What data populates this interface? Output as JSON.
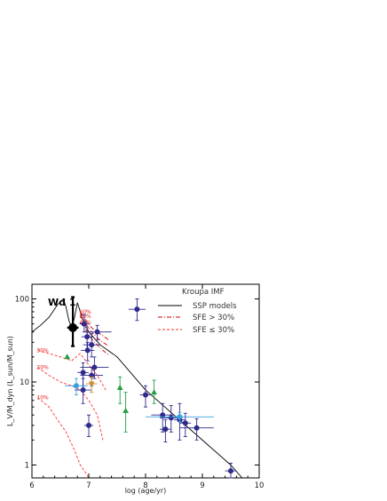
{
  "chart_data": {
    "type": "scatter",
    "xlabel": "log (age/yr)",
    "ylabel": "L_V/M_dyn (L_sun/M_sun)",
    "xlim": [
      6,
      10
    ],
    "ylim": [
      0.7,
      150
    ],
    "yscale": "log",
    "x_ticks": [
      "6",
      "7",
      "8",
      "9",
      "10"
    ],
    "y_ticks": [
      "1",
      "10",
      "100"
    ],
    "annotation": "Wd 1",
    "legend": {
      "title": "Kroupa IMF",
      "entries": [
        "SSP models",
        "SFE > 30%",
        "SFE ≤ 30%"
      ],
      "placement": "top-right"
    },
    "sfe_labels": [
      "60%",
      "50%",
      "40%",
      "30%",
      "20%",
      "10%"
    ],
    "colors": {
      "ssp": "#000000",
      "sfe_high": "#d00000",
      "sfe_low": "#ff3030",
      "cluster": "#2e2a8c",
      "cluster_light": "#3aa0e0",
      "triangle": "#22a040",
      "orange": "#d08a30",
      "wd1": "#000000"
    },
    "ssp_model": {
      "x": [
        6.0,
        6.15,
        6.3,
        6.45,
        6.55,
        6.6,
        6.65,
        6.7,
        6.75,
        6.8,
        6.9,
        7.0,
        7.2,
        7.5,
        8.0,
        8.5,
        9.0,
        9.5,
        9.7
      ],
      "y": [
        40,
        48,
        60,
        85,
        100,
        80,
        55,
        45,
        60,
        90,
        55,
        40,
        28,
        20,
        8,
        4,
        2,
        1,
        0.7
      ]
    },
    "sfe_curves": [
      {
        "label": "60%",
        "x": [
          6.85,
          6.95,
          7.05,
          7.15,
          7.25,
          7.35
        ],
        "y": [
          70,
          55,
          45,
          40,
          36,
          32
        ]
      },
      {
        "label": "50%",
        "x": [
          6.85,
          6.95,
          7.05,
          7.15,
          7.25,
          7.35
        ],
        "y": [
          62,
          50,
          40,
          34,
          30,
          27
        ]
      },
      {
        "label": "40%",
        "x": [
          6.85,
          6.95,
          7.05,
          7.15,
          7.25,
          7.35
        ],
        "y": [
          52,
          42,
          33,
          28,
          24,
          21
        ]
      },
      {
        "label": "30%",
        "x": [
          6.1,
          6.3,
          6.5,
          6.7,
          6.85,
          7.0,
          7.15,
          7.3
        ],
        "y": [
          24,
          22,
          20,
          18,
          22,
          16,
          12,
          8
        ]
      },
      {
        "label": "20%",
        "x": [
          6.1,
          6.3,
          6.5,
          6.7,
          6.85,
          7.0,
          7.15,
          7.25
        ],
        "y": [
          15,
          12,
          10,
          9,
          8,
          6,
          4,
          2
        ]
      },
      {
        "label": "10%",
        "x": [
          6.1,
          6.3,
          6.45,
          6.6,
          6.75,
          6.85,
          6.95,
          7.0
        ],
        "y": [
          6.5,
          5,
          3.5,
          2.5,
          1.5,
          1.0,
          0.8,
          0.7
        ]
      }
    ],
    "clusters": [
      {
        "x": 6.72,
        "y": 45,
        "xerr": 0.1,
        "yerr_lo": 18,
        "yerr_hi": 60,
        "kind": "wd1"
      },
      {
        "x": 6.92,
        "y": 50,
        "xerr": 0.08,
        "yerr_lo": 10,
        "yerr_hi": 15,
        "kind": "cluster"
      },
      {
        "x": 6.97,
        "y": 35,
        "xerr": 0.1,
        "yerr_lo": 10,
        "yerr_hi": 10,
        "kind": "cluster"
      },
      {
        "x": 7.15,
        "y": 40,
        "xerr": 0.25,
        "yerr_lo": 8,
        "yerr_hi": 8,
        "kind": "cluster"
      },
      {
        "x": 7.05,
        "y": 28,
        "xerr": 0.15,
        "yerr_lo": 8,
        "yerr_hi": 10,
        "kind": "cluster"
      },
      {
        "x": 6.98,
        "y": 24,
        "xerr": 0.12,
        "yerr_lo": 6,
        "yerr_hi": 6,
        "kind": "cluster"
      },
      {
        "x": 7.85,
        "y": 75,
        "xerr": 0.15,
        "yerr_lo": 20,
        "yerr_hi": 25,
        "kind": "cluster"
      },
      {
        "x": 7.1,
        "y": 15,
        "xerr": 0.25,
        "yerr_lo": 4,
        "yerr_hi": 5,
        "kind": "cluster"
      },
      {
        "x": 6.9,
        "y": 13,
        "xerr": 0.1,
        "yerr_lo": 4,
        "yerr_hi": 4,
        "kind": "cluster"
      },
      {
        "x": 7.05,
        "y": 12,
        "xerr": 0.2,
        "yerr_lo": 3,
        "yerr_hi": 3,
        "kind": "cluster"
      },
      {
        "x": 6.9,
        "y": 8,
        "xerr": 0.15,
        "yerr_lo": 2.5,
        "yerr_hi": 3,
        "kind": "cluster"
      },
      {
        "x": 7.0,
        "y": 3,
        "xerr": 0.08,
        "yerr_lo": 0.8,
        "yerr_hi": 1,
        "kind": "cluster"
      },
      {
        "x": 6.78,
        "y": 9,
        "xerr": 0.2,
        "yerr_lo": 2,
        "yerr_hi": 2,
        "kind": "cluster_light"
      },
      {
        "x": 7.05,
        "y": 9.5,
        "xerr": 0.1,
        "yerr_lo": 2,
        "yerr_hi": 2,
        "kind": "orange"
      },
      {
        "x": 8.0,
        "y": 7,
        "xerr": 0.1,
        "yerr_lo": 2,
        "yerr_hi": 2,
        "kind": "cluster"
      },
      {
        "x": 8.3,
        "y": 4,
        "xerr": 0.2,
        "yerr_lo": 1.5,
        "yerr_hi": 1.5,
        "kind": "cluster"
      },
      {
        "x": 8.35,
        "y": 2.7,
        "xerr": 0.1,
        "yerr_lo": 0.8,
        "yerr_hi": 0.8,
        "kind": "cluster"
      },
      {
        "x": 8.45,
        "y": 3.7,
        "xerr": 0.2,
        "yerr_lo": 1.2,
        "yerr_hi": 1.5,
        "kind": "cluster"
      },
      {
        "x": 8.6,
        "y": 3.5,
        "xerr": 0.1,
        "yerr_lo": 1.5,
        "yerr_hi": 2,
        "kind": "cluster"
      },
      {
        "x": 8.6,
        "y": 3.8,
        "xerr": 0.6,
        "yerr_lo": 0.5,
        "yerr_hi": 0.5,
        "kind": "cluster_light"
      },
      {
        "x": 8.7,
        "y": 3.2,
        "xerr": 0.1,
        "yerr_lo": 1,
        "yerr_hi": 1,
        "kind": "cluster"
      },
      {
        "x": 8.9,
        "y": 2.8,
        "xerr": 0.3,
        "yerr_lo": 0.8,
        "yerr_hi": 0.8,
        "kind": "cluster"
      },
      {
        "x": 9.5,
        "y": 0.85,
        "xerr": 0.1,
        "yerr_lo": 0.2,
        "yerr_hi": 0.2,
        "kind": "cluster"
      },
      {
        "x": 6.62,
        "y": 20,
        "xerr": 0.0,
        "yerr_lo": 0,
        "yerr_hi": 0,
        "kind": "triangle"
      },
      {
        "x": 7.55,
        "y": 8.5,
        "xerr": 0.0,
        "yerr_lo": 3,
        "yerr_hi": 3,
        "kind": "triangle"
      },
      {
        "x": 7.65,
        "y": 4.5,
        "xerr": 0.0,
        "yerr_lo": 2,
        "yerr_hi": 3,
        "kind": "triangle"
      },
      {
        "x": 8.15,
        "y": 7.5,
        "xerr": 0.0,
        "yerr_lo": 2,
        "yerr_hi": 3,
        "kind": "triangle"
      }
    ]
  }
}
